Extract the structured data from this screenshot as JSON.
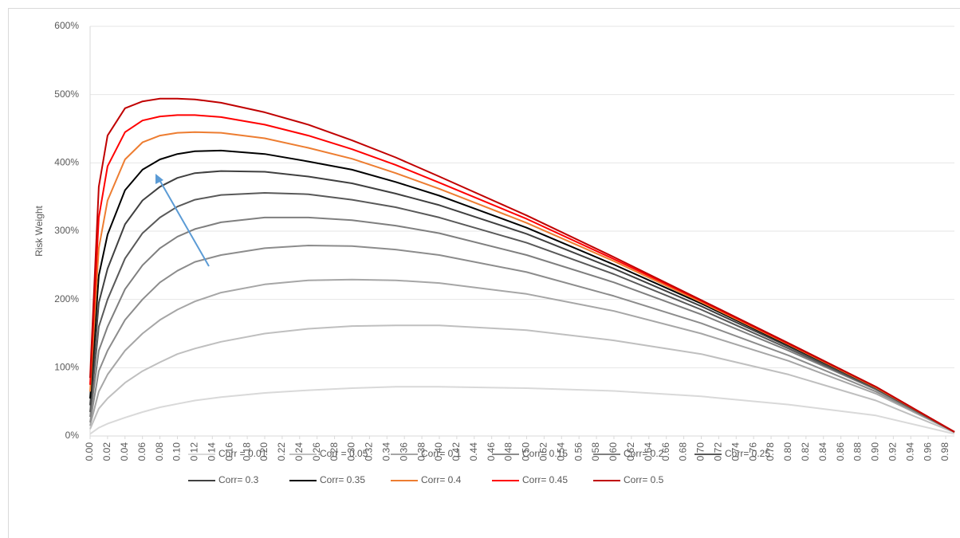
{
  "chart_data": {
    "type": "line",
    "y_label": "Risk Weight",
    "x": [
      0,
      0.01,
      0.02,
      0.04,
      0.06,
      0.08,
      0.1,
      0.12,
      0.15,
      0.2,
      0.25,
      0.3,
      0.35,
      0.4,
      0.5,
      0.6,
      0.7,
      0.8,
      0.9,
      0.99
    ],
    "xlim": [
      0,
      0.99
    ],
    "xticks": [
      {
        "value": 0,
        "label": "0.00"
      },
      {
        "value": 0.02,
        "label": "0.02"
      },
      {
        "value": 0.04,
        "label": "0.04"
      },
      {
        "value": 0.06,
        "label": "0.06"
      },
      {
        "value": 0.08,
        "label": "0.08"
      },
      {
        "value": 0.1,
        "label": "0.10"
      },
      {
        "value": 0.12,
        "label": "0.12"
      },
      {
        "value": 0.14,
        "label": "0.14"
      },
      {
        "value": 0.16,
        "label": "0.16"
      },
      {
        "value": 0.18,
        "label": "0.18"
      },
      {
        "value": 0.2,
        "label": "0.20"
      },
      {
        "value": 0.22,
        "label": "0.22"
      },
      {
        "value": 0.24,
        "label": "0.24"
      },
      {
        "value": 0.26,
        "label": "0.26"
      },
      {
        "value": 0.28,
        "label": "0.28"
      },
      {
        "value": 0.3,
        "label": "0.30"
      },
      {
        "value": 0.32,
        "label": "0.32"
      },
      {
        "value": 0.34,
        "label": "0.34"
      },
      {
        "value": 0.36,
        "label": "0.36"
      },
      {
        "value": 0.38,
        "label": "0.38"
      },
      {
        "value": 0.4,
        "label": "0.40"
      },
      {
        "value": 0.42,
        "label": "0.42"
      },
      {
        "value": 0.44,
        "label": "0.44"
      },
      {
        "value": 0.46,
        "label": "0.46"
      },
      {
        "value": 0.48,
        "label": "0.48"
      },
      {
        "value": 0.5,
        "label": "0.50"
      },
      {
        "value": 0.52,
        "label": "0.52"
      },
      {
        "value": 0.54,
        "label": "0.54"
      },
      {
        "value": 0.56,
        "label": "0.56"
      },
      {
        "value": 0.58,
        "label": "0.58"
      },
      {
        "value": 0.6,
        "label": "0.60"
      },
      {
        "value": 0.62,
        "label": "0.62"
      },
      {
        "value": 0.64,
        "label": "0.64"
      },
      {
        "value": 0.66,
        "label": "0.66"
      },
      {
        "value": 0.68,
        "label": "0.68"
      },
      {
        "value": 0.7,
        "label": "0.70"
      },
      {
        "value": 0.72,
        "label": "0.72"
      },
      {
        "value": 0.74,
        "label": "0.74"
      },
      {
        "value": 0.76,
        "label": "0.76"
      },
      {
        "value": 0.78,
        "label": "0.78"
      },
      {
        "value": 0.8,
        "label": "0.80"
      },
      {
        "value": 0.82,
        "label": "0.82"
      },
      {
        "value": 0.84,
        "label": "0.84"
      },
      {
        "value": 0.86,
        "label": "0.86"
      },
      {
        "value": 0.88,
        "label": "0.88"
      },
      {
        "value": 0.9,
        "label": "0.90"
      },
      {
        "value": 0.92,
        "label": "0.92"
      },
      {
        "value": 0.94,
        "label": "0.94"
      },
      {
        "value": 0.96,
        "label": "0.96"
      },
      {
        "value": 0.98,
        "label": "0.98"
      }
    ],
    "ylim": [
      0,
      600
    ],
    "yticks": [
      {
        "value": 0,
        "label": "0%"
      },
      {
        "value": 100,
        "label": "100%"
      },
      {
        "value": 200,
        "label": "200%"
      },
      {
        "value": 300,
        "label": "300%"
      },
      {
        "value": 400,
        "label": "400%"
      },
      {
        "value": 500,
        "label": "500%"
      },
      {
        "value": 600,
        "label": "600%"
      }
    ],
    "grid": true,
    "legend": "bottom",
    "series": [
      {
        "name": "Corr = 0.01",
        "color": "#d9d9d9",
        "values": [
          3,
          12,
          18,
          27,
          35,
          42,
          47,
          52,
          57,
          63,
          67,
          70,
          72,
          72,
          70,
          66,
          58,
          46,
          30,
          3
        ]
      },
      {
        "name": "Corr = 0.05",
        "color": "#bfbfbf",
        "values": [
          10,
          40,
          55,
          78,
          95,
          108,
          120,
          128,
          138,
          150,
          157,
          161,
          162,
          162,
          155,
          140,
          120,
          90,
          52,
          5
        ]
      },
      {
        "name": "Corr= 0.1",
        "color": "#a6a6a6",
        "values": [
          15,
          65,
          90,
          125,
          150,
          170,
          185,
          197,
          210,
          222,
          228,
          229,
          228,
          224,
          208,
          183,
          150,
          110,
          62,
          6
        ]
      },
      {
        "name": "Corr= 0.15",
        "color": "#8c8c8c",
        "values": [
          20,
          95,
          125,
          170,
          200,
          225,
          242,
          255,
          265,
          275,
          279,
          278,
          273,
          265,
          240,
          205,
          165,
          118,
          65,
          6
        ]
      },
      {
        "name": "Corr= 0.2",
        "color": "#7f7f7f",
        "values": [
          28,
          125,
          160,
          215,
          250,
          275,
          292,
          303,
          313,
          320,
          320,
          316,
          308,
          297,
          265,
          225,
          178,
          125,
          68,
          6
        ]
      },
      {
        "name": "Corr= 0.25",
        "color": "#595959",
        "values": [
          35,
          160,
          200,
          260,
          297,
          320,
          336,
          346,
          353,
          356,
          354,
          346,
          335,
          320,
          283,
          237,
          185,
          128,
          69,
          6
        ]
      },
      {
        "name": "Corr= 0.3",
        "color": "#404040",
        "values": [
          45,
          195,
          245,
          310,
          345,
          365,
          378,
          385,
          388,
          387,
          380,
          370,
          355,
          338,
          296,
          245,
          190,
          131,
          70,
          6
        ]
      },
      {
        "name": "Corr= 0.35",
        "color": "#000000",
        "values": [
          55,
          235,
          295,
          360,
          390,
          405,
          413,
          417,
          418,
          413,
          402,
          390,
          372,
          352,
          305,
          251,
          194,
          133,
          71,
          6
        ]
      },
      {
        "name": "Corr= 0.4",
        "color": "#ed7d31",
        "values": [
          65,
          275,
          345,
          405,
          430,
          440,
          444,
          445,
          444,
          436,
          422,
          406,
          385,
          362,
          312,
          256,
          196,
          134,
          71,
          6
        ]
      },
      {
        "name": "Corr= 0.45",
        "color": "#ff0000",
        "values": [
          75,
          320,
          395,
          445,
          462,
          468,
          470,
          470,
          467,
          456,
          440,
          420,
          397,
          371,
          318,
          259,
          198,
          135,
          72,
          6
        ]
      },
      {
        "name": "Corr= 0.5",
        "color": "#c00000",
        "values": [
          85,
          365,
          440,
          480,
          490,
          494,
          494,
          493,
          488,
          474,
          456,
          433,
          408,
          380,
          323,
          262,
          199,
          136,
          72,
          6
        ]
      }
    ]
  }
}
